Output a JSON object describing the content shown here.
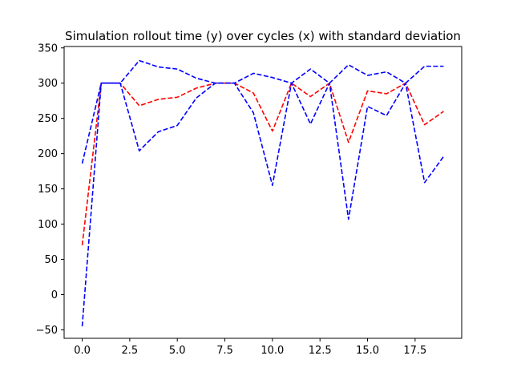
{
  "chart_data": {
    "type": "line",
    "title": "Simulation rollout time (y) over cycles (x) with standard deviation",
    "xlabel": "",
    "ylabel": "",
    "xlim": [
      -0.95,
      19.95
    ],
    "ylim": [
      -62,
      352
    ],
    "xticks": [
      0.0,
      2.5,
      5.0,
      7.5,
      10.0,
      12.5,
      15.0,
      17.5
    ],
    "xtick_labels": [
      "0.0",
      "2.5",
      "5.0",
      "7.5",
      "10.0",
      "12.5",
      "15.0",
      "17.5"
    ],
    "yticks": [
      -50,
      0,
      50,
      100,
      150,
      200,
      250,
      300,
      350
    ],
    "ytick_labels": [
      "−50",
      "0",
      "50",
      "100",
      "150",
      "200",
      "250",
      "300",
      "350"
    ],
    "grid": false,
    "x": [
      0,
      1,
      2,
      3,
      4,
      5,
      6,
      7,
      8,
      9,
      10,
      11,
      12,
      13,
      14,
      15,
      16,
      17,
      18,
      19
    ],
    "series": [
      {
        "color": "#ff0000",
        "style": "dashed",
        "values": [
          70,
          300,
          300,
          268,
          277,
          280,
          293,
          300,
          300,
          286,
          232,
          300,
          281,
          300,
          216,
          289,
          285,
          300,
          241,
          260
        ]
      },
      {
        "color": "#0000ff",
        "style": "dashed",
        "values": [
          186,
          300,
          300,
          332,
          323,
          320,
          307,
          300,
          300,
          314,
          308,
          300,
          320,
          300,
          326,
          311,
          316,
          300,
          324,
          324
        ]
      },
      {
        "color": "#0000ff",
        "style": "dashed",
        "values": [
          -45,
          300,
          300,
          204,
          231,
          240,
          279,
          300,
          300,
          258,
          155,
          300,
          242,
          300,
          107,
          267,
          254,
          300,
          159,
          196
        ]
      }
    ]
  }
}
